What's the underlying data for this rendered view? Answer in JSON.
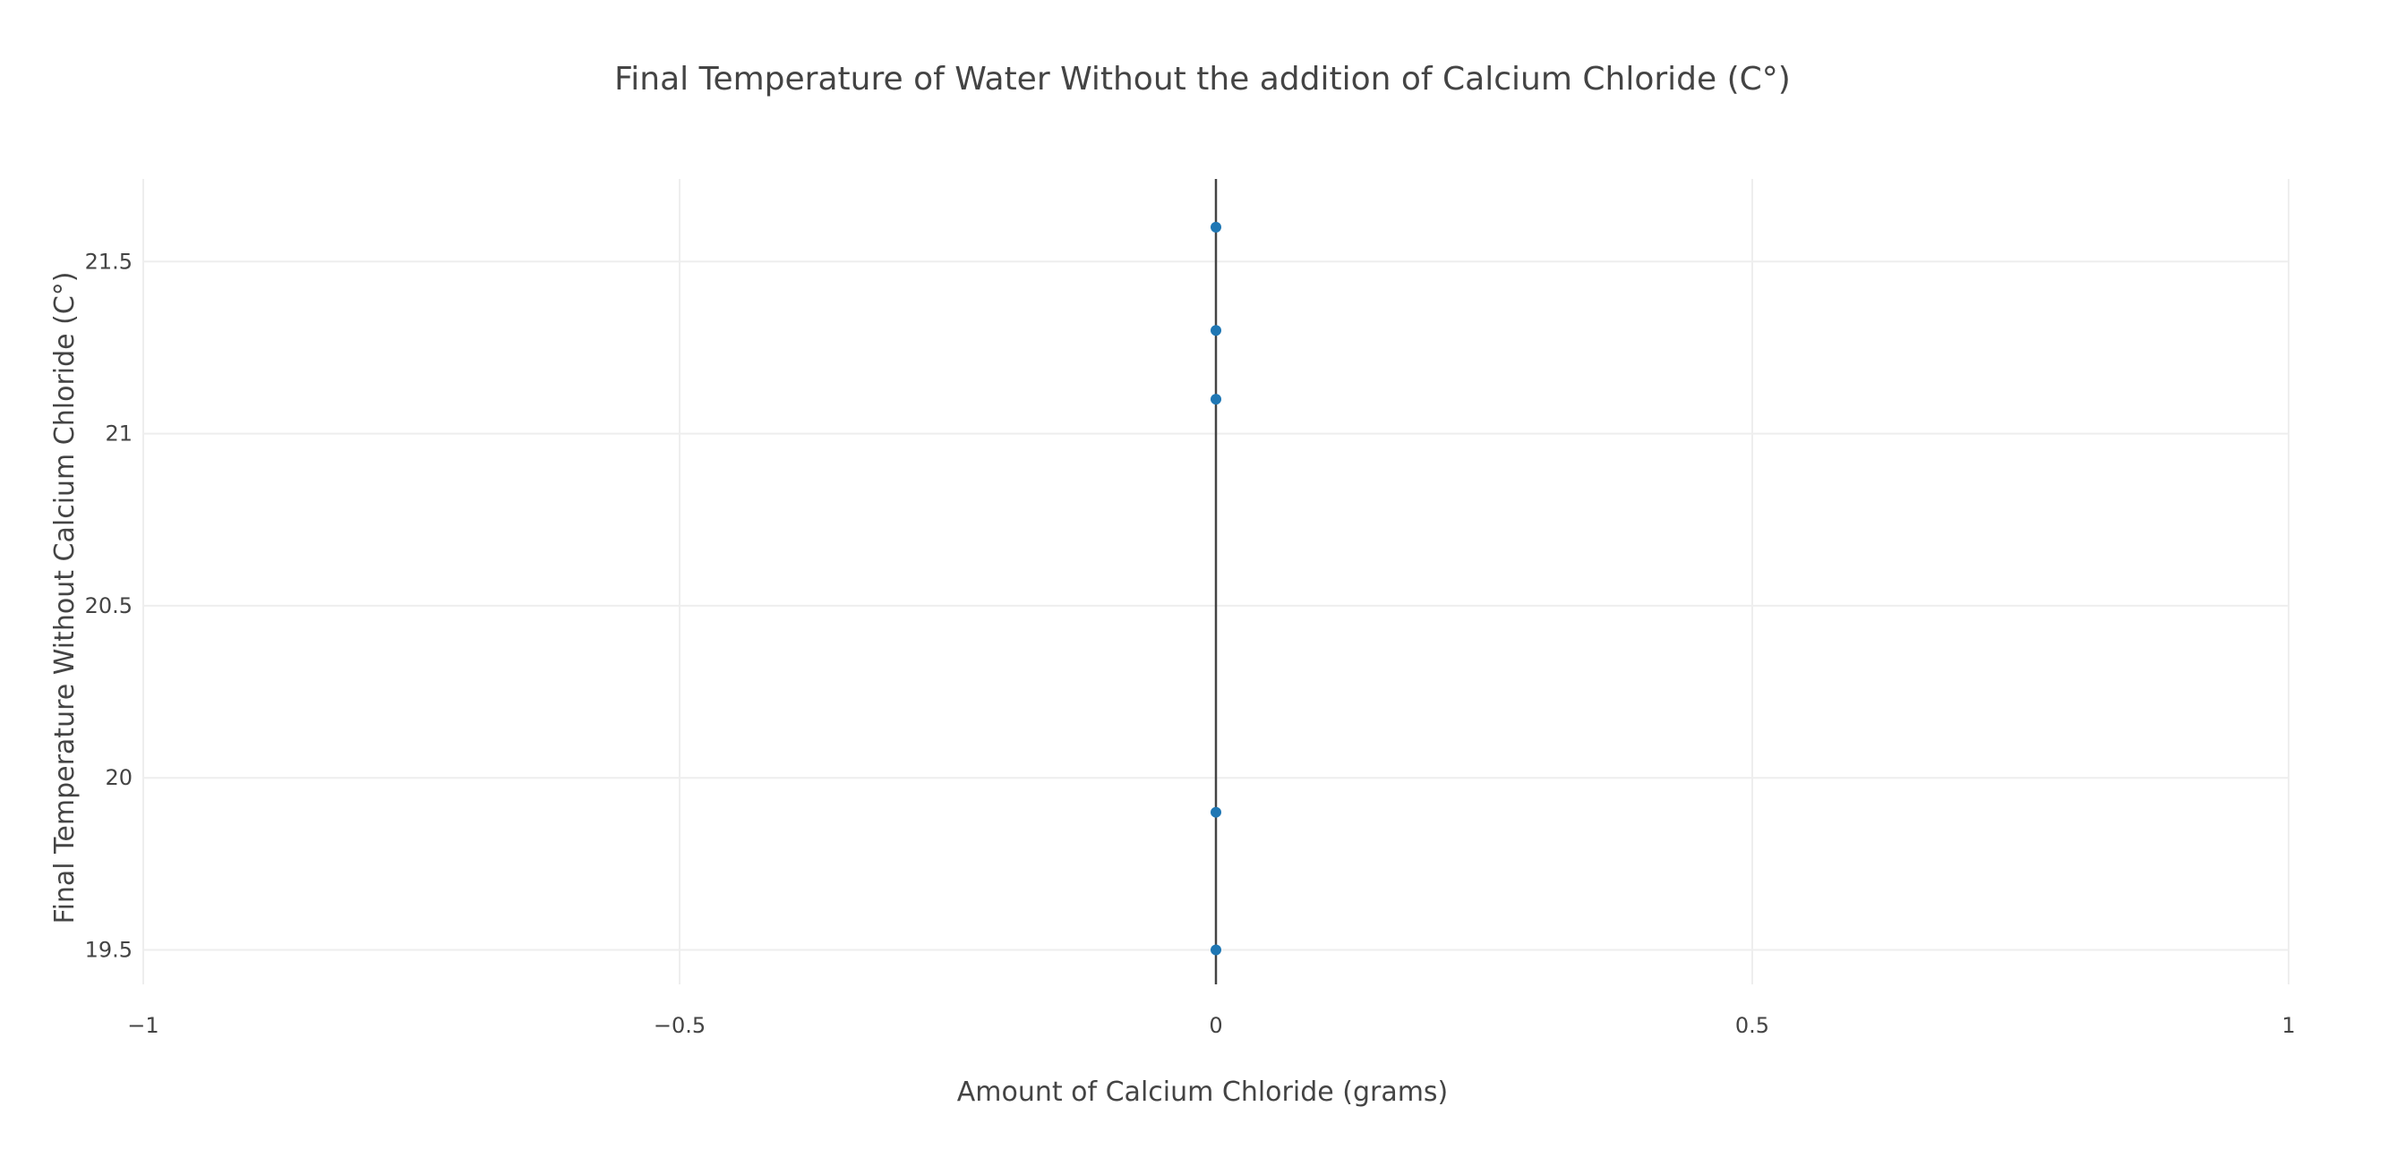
{
  "chart_data": {
    "type": "scatter",
    "title": "Final Temperature  of Water Without the addition of Calcium Chloride (C°)",
    "xlabel": "Amount of Calcium Chloride (grams)",
    "ylabel": "Final Temperature Without Calcium Chloride (C°)",
    "xlim": [
      -1,
      1
    ],
    "ylim": [
      19.4,
      21.74
    ],
    "x_ticks": [
      -1,
      -0.5,
      0,
      0.5,
      1
    ],
    "x_tick_labels": [
      "−1",
      "−0.5",
      "0",
      "0.5",
      "1"
    ],
    "y_ticks": [
      19.5,
      20,
      20.5,
      21,
      21.5
    ],
    "y_tick_labels": [
      "19.5",
      "20",
      "20.5",
      "21",
      "21.5"
    ],
    "grid": true,
    "zeroline_x": true,
    "series": [
      {
        "x": [
          0,
          0,
          0,
          0,
          0
        ],
        "y": [
          21.6,
          21.3,
          21.1,
          19.9,
          19.5
        ],
        "color": "#1f77b4"
      }
    ]
  }
}
